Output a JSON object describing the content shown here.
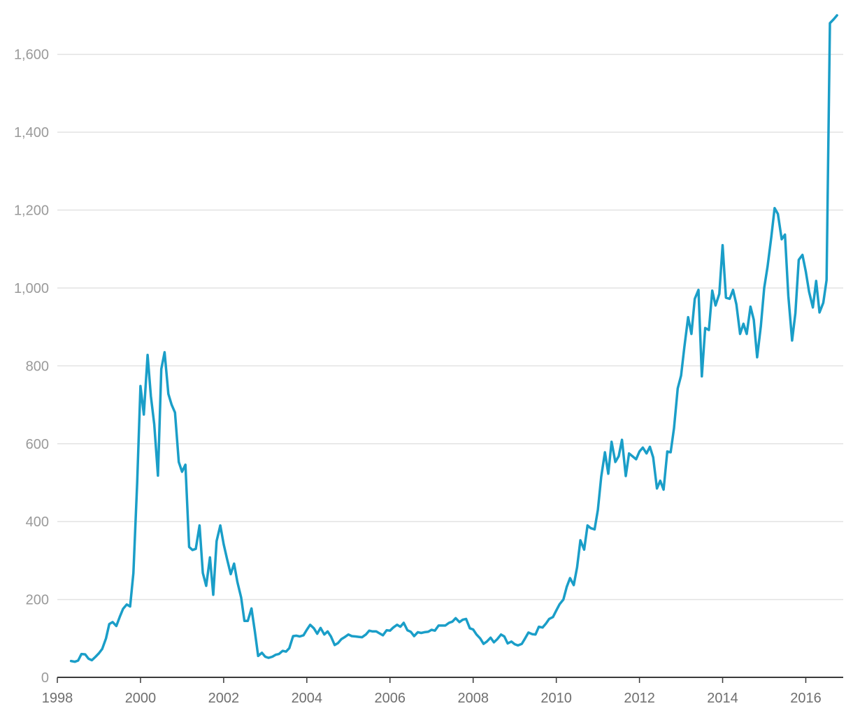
{
  "chart_data": {
    "type": "line",
    "title": "",
    "xlabel": "",
    "ylabel": "",
    "xlim": [
      1998,
      2016.9
    ],
    "ylim": [
      0,
      1700
    ],
    "grid": true,
    "legend": "none",
    "x_ticks": [
      1998,
      2000,
      2002,
      2004,
      2006,
      2008,
      2010,
      2012,
      2014,
      2016
    ],
    "x_tick_labels": [
      "1998",
      "2000",
      "2002",
      "2004",
      "2006",
      "2008",
      "2010",
      "2012",
      "2014",
      "2016"
    ],
    "y_ticks": [
      0,
      200,
      400,
      600,
      800,
      1000,
      1200,
      1400,
      1600
    ],
    "y_tick_labels": [
      "0",
      "200",
      "400",
      "600",
      "800",
      "1,000",
      "1,200",
      "1,400",
      "1,600"
    ],
    "series": [
      {
        "color": "#1a9ec8",
        "points": [
          [
            1998.33,
            42
          ],
          [
            1998.42,
            40
          ],
          [
            1998.5,
            43
          ],
          [
            1998.58,
            60
          ],
          [
            1998.67,
            59
          ],
          [
            1998.75,
            48
          ],
          [
            1998.83,
            44
          ],
          [
            1998.92,
            53
          ],
          [
            1999.0,
            62
          ],
          [
            1999.08,
            73
          ],
          [
            1999.17,
            100
          ],
          [
            1999.25,
            137
          ],
          [
            1999.33,
            142
          ],
          [
            1999.42,
            132
          ],
          [
            1999.5,
            155
          ],
          [
            1999.58,
            176
          ],
          [
            1999.67,
            187
          ],
          [
            1999.75,
            182
          ],
          [
            1999.83,
            268
          ],
          [
            1999.92,
            500
          ],
          [
            2000.0,
            748
          ],
          [
            2000.08,
            675
          ],
          [
            2000.17,
            828
          ],
          [
            2000.25,
            722
          ],
          [
            2000.33,
            650
          ],
          [
            2000.42,
            518
          ],
          [
            2000.5,
            792
          ],
          [
            2000.58,
            835
          ],
          [
            2000.67,
            728
          ],
          [
            2000.75,
            700
          ],
          [
            2000.83,
            680
          ],
          [
            2000.92,
            553
          ],
          [
            2001.0,
            528
          ],
          [
            2001.08,
            546
          ],
          [
            2001.17,
            335
          ],
          [
            2001.25,
            327
          ],
          [
            2001.33,
            330
          ],
          [
            2001.42,
            390
          ],
          [
            2001.5,
            268
          ],
          [
            2001.58,
            235
          ],
          [
            2001.67,
            308
          ],
          [
            2001.75,
            212
          ],
          [
            2001.83,
            350
          ],
          [
            2001.92,
            390
          ],
          [
            2002.0,
            342
          ],
          [
            2002.08,
            305
          ],
          [
            2002.17,
            265
          ],
          [
            2002.25,
            292
          ],
          [
            2002.33,
            245
          ],
          [
            2002.42,
            205
          ],
          [
            2002.5,
            145
          ],
          [
            2002.58,
            145
          ],
          [
            2002.67,
            177
          ],
          [
            2002.75,
            118
          ],
          [
            2002.83,
            55
          ],
          [
            2002.92,
            63
          ],
          [
            2003.0,
            53
          ],
          [
            2003.08,
            50
          ],
          [
            2003.17,
            53
          ],
          [
            2003.25,
            58
          ],
          [
            2003.33,
            60
          ],
          [
            2003.42,
            68
          ],
          [
            2003.5,
            66
          ],
          [
            2003.58,
            75
          ],
          [
            2003.67,
            106
          ],
          [
            2003.75,
            107
          ],
          [
            2003.83,
            105
          ],
          [
            2003.92,
            108
          ],
          [
            2004.0,
            122
          ],
          [
            2004.08,
            135
          ],
          [
            2004.17,
            126
          ],
          [
            2004.25,
            112
          ],
          [
            2004.33,
            127
          ],
          [
            2004.42,
            110
          ],
          [
            2004.5,
            118
          ],
          [
            2004.58,
            105
          ],
          [
            2004.67,
            83
          ],
          [
            2004.75,
            88
          ],
          [
            2004.83,
            98
          ],
          [
            2004.92,
            104
          ],
          [
            2005.0,
            110
          ],
          [
            2005.08,
            106
          ],
          [
            2005.17,
            105
          ],
          [
            2005.25,
            104
          ],
          [
            2005.33,
            103
          ],
          [
            2005.42,
            110
          ],
          [
            2005.5,
            120
          ],
          [
            2005.58,
            118
          ],
          [
            2005.67,
            118
          ],
          [
            2005.75,
            113
          ],
          [
            2005.83,
            108
          ],
          [
            2005.92,
            121
          ],
          [
            2006.0,
            120
          ],
          [
            2006.08,
            128
          ],
          [
            2006.17,
            135
          ],
          [
            2006.25,
            130
          ],
          [
            2006.33,
            140
          ],
          [
            2006.42,
            121
          ],
          [
            2006.5,
            117
          ],
          [
            2006.58,
            106
          ],
          [
            2006.67,
            116
          ],
          [
            2006.75,
            114
          ],
          [
            2006.83,
            116
          ],
          [
            2006.92,
            117
          ],
          [
            2007.0,
            122
          ],
          [
            2007.08,
            120
          ],
          [
            2007.17,
            133
          ],
          [
            2007.25,
            133
          ],
          [
            2007.33,
            133
          ],
          [
            2007.42,
            140
          ],
          [
            2007.5,
            143
          ],
          [
            2007.58,
            152
          ],
          [
            2007.67,
            142
          ],
          [
            2007.75,
            148
          ],
          [
            2007.83,
            150
          ],
          [
            2007.92,
            126
          ],
          [
            2008.0,
            123
          ],
          [
            2008.08,
            110
          ],
          [
            2008.17,
            100
          ],
          [
            2008.25,
            86
          ],
          [
            2008.33,
            92
          ],
          [
            2008.42,
            102
          ],
          [
            2008.5,
            90
          ],
          [
            2008.58,
            98
          ],
          [
            2008.67,
            110
          ],
          [
            2008.75,
            105
          ],
          [
            2008.83,
            87
          ],
          [
            2008.92,
            92
          ],
          [
            2009.0,
            85
          ],
          [
            2009.08,
            82
          ],
          [
            2009.17,
            86
          ],
          [
            2009.25,
            100
          ],
          [
            2009.33,
            115
          ],
          [
            2009.42,
            111
          ],
          [
            2009.5,
            110
          ],
          [
            2009.58,
            130
          ],
          [
            2009.67,
            128
          ],
          [
            2009.75,
            138
          ],
          [
            2009.83,
            150
          ],
          [
            2009.92,
            155
          ],
          [
            2010.0,
            172
          ],
          [
            2010.08,
            188
          ],
          [
            2010.17,
            200
          ],
          [
            2010.25,
            232
          ],
          [
            2010.33,
            255
          ],
          [
            2010.42,
            237
          ],
          [
            2010.5,
            283
          ],
          [
            2010.58,
            352
          ],
          [
            2010.67,
            328
          ],
          [
            2010.75,
            390
          ],
          [
            2010.83,
            383
          ],
          [
            2010.92,
            380
          ],
          [
            2011.0,
            430
          ],
          [
            2011.08,
            515
          ],
          [
            2011.17,
            578
          ],
          [
            2011.25,
            523
          ],
          [
            2011.33,
            605
          ],
          [
            2011.42,
            553
          ],
          [
            2011.5,
            568
          ],
          [
            2011.58,
            610
          ],
          [
            2011.67,
            517
          ],
          [
            2011.75,
            575
          ],
          [
            2011.83,
            568
          ],
          [
            2011.92,
            560
          ],
          [
            2012.0,
            580
          ],
          [
            2012.08,
            590
          ],
          [
            2012.17,
            575
          ],
          [
            2012.25,
            592
          ],
          [
            2012.33,
            565
          ],
          [
            2012.42,
            485
          ],
          [
            2012.5,
            505
          ],
          [
            2012.58,
            482
          ],
          [
            2012.67,
            580
          ],
          [
            2012.75,
            578
          ],
          [
            2012.83,
            640
          ],
          [
            2012.92,
            742
          ],
          [
            2013.0,
            775
          ],
          [
            2013.08,
            848
          ],
          [
            2013.17,
            925
          ],
          [
            2013.25,
            882
          ],
          [
            2013.33,
            972
          ],
          [
            2013.42,
            995
          ],
          [
            2013.5,
            773
          ],
          [
            2013.58,
            897
          ],
          [
            2013.67,
            892
          ],
          [
            2013.75,
            993
          ],
          [
            2013.83,
            955
          ],
          [
            2013.92,
            985
          ],
          [
            2014.0,
            1110
          ],
          [
            2014.08,
            975
          ],
          [
            2014.17,
            972
          ],
          [
            2014.25,
            995
          ],
          [
            2014.33,
            958
          ],
          [
            2014.42,
            882
          ],
          [
            2014.5,
            908
          ],
          [
            2014.58,
            882
          ],
          [
            2014.67,
            952
          ],
          [
            2014.75,
            918
          ],
          [
            2014.83,
            822
          ],
          [
            2014.92,
            902
          ],
          [
            2015.0,
            1000
          ],
          [
            2015.08,
            1055
          ],
          [
            2015.17,
            1130
          ],
          [
            2015.25,
            1205
          ],
          [
            2015.33,
            1190
          ],
          [
            2015.42,
            1125
          ],
          [
            2015.5,
            1137
          ],
          [
            2015.58,
            980
          ],
          [
            2015.67,
            865
          ],
          [
            2015.75,
            935
          ],
          [
            2015.83,
            1072
          ],
          [
            2015.92,
            1085
          ],
          [
            2016.0,
            1042
          ],
          [
            2016.08,
            990
          ],
          [
            2016.17,
            950
          ],
          [
            2016.25,
            1018
          ],
          [
            2016.33,
            937
          ],
          [
            2016.42,
            962
          ],
          [
            2016.5,
            1020
          ],
          [
            2016.58,
            1680
          ],
          [
            2016.67,
            1690
          ],
          [
            2016.75,
            1700
          ]
        ]
      }
    ]
  }
}
